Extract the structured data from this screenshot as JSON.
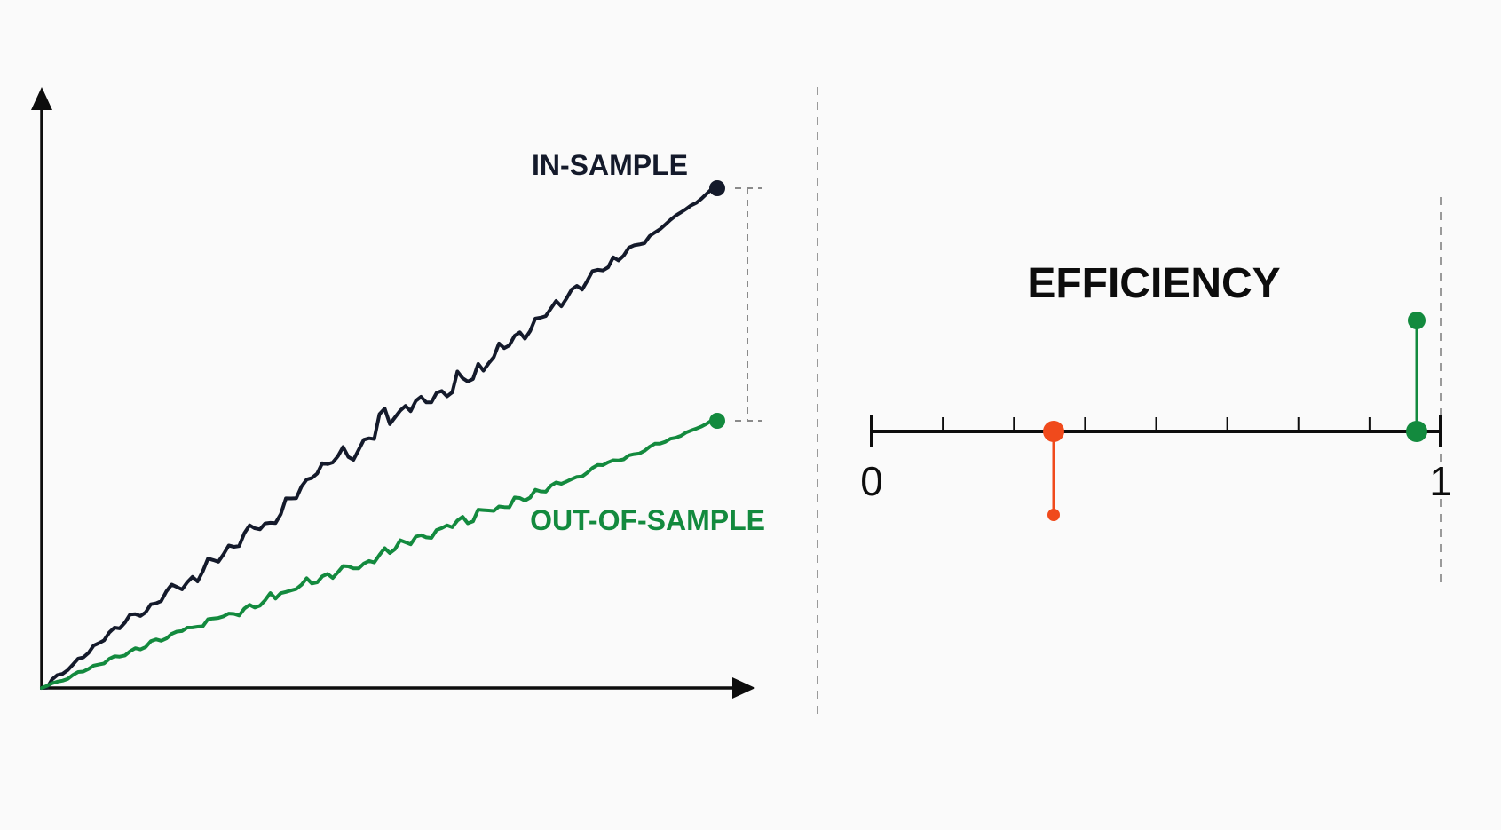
{
  "left_panel": {
    "in_sample_label": "IN-SAMPLE",
    "out_of_sample_label": "OUT-OF-SAMPLE"
  },
  "right_panel": {
    "title": "EFFICIENCY",
    "scale_min_label": "0",
    "scale_max_label": "1",
    "minor_tick_count": 7,
    "red_marker_value": 0.32,
    "green_marker_value": 0.96
  },
  "colors": {
    "background": "#fafafa",
    "in_sample": "#141a2b",
    "out_of_sample": "#138a3e",
    "axis": "#0d0d0d",
    "divider": "#9a9a9a",
    "red_marker": "#f04a1c",
    "green_marker": "#138a3e"
  }
}
